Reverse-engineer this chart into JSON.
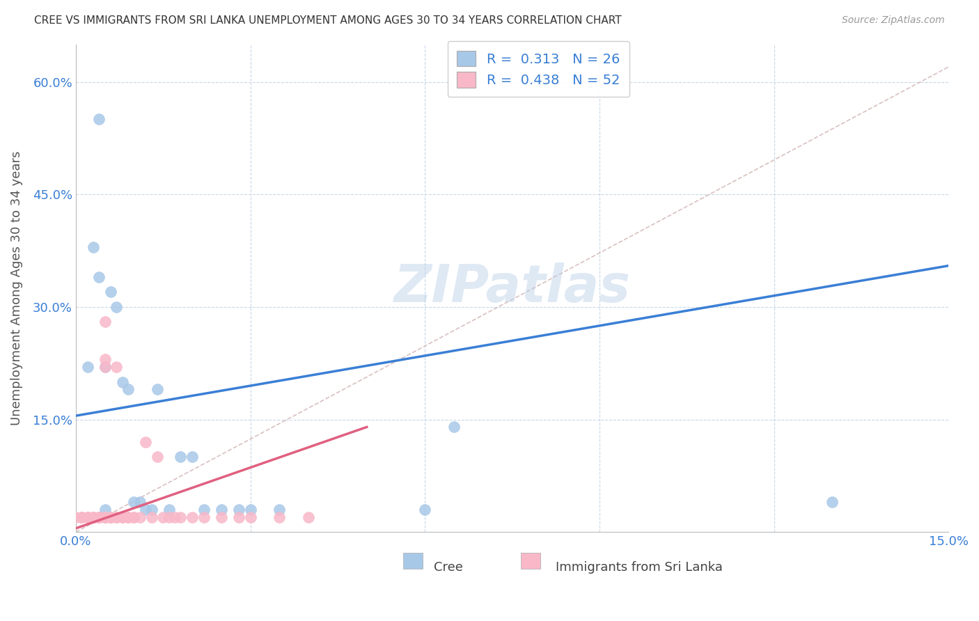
{
  "title": "CREE VS IMMIGRANTS FROM SRI LANKA UNEMPLOYMENT AMONG AGES 30 TO 34 YEARS CORRELATION CHART",
  "source": "Source: ZipAtlas.com",
  "ylabel": "Unemployment Among Ages 30 to 34 years",
  "xlim": [
    0.0,
    0.15
  ],
  "ylim": [
    0.0,
    0.65
  ],
  "xticks": [
    0.0,
    0.03,
    0.06,
    0.09,
    0.12,
    0.15
  ],
  "xtick_labels": [
    "0.0%",
    "",
    "",
    "",
    "",
    "15.0%"
  ],
  "yticks": [
    0.0,
    0.15,
    0.3,
    0.45,
    0.6
  ],
  "ytick_labels": [
    "",
    "15.0%",
    "30.0%",
    "45.0%",
    "60.0%"
  ],
  "cree_color": "#a8c8e8",
  "srilanka_color": "#f8b8c8",
  "cree_line_color": "#3a7fd5",
  "srilanka_line_color": "#e06080",
  "ref_line_color": "#d0b0b0",
  "legend_R_cree": "0.313",
  "legend_N_cree": "26",
  "legend_R_srilanka": "0.438",
  "legend_N_srilanka": "52",
  "watermark": "ZIPatlas",
  "background_color": "#ffffff",
  "grid_color": "#c8d8e8",
  "cree_x": [
    0.002,
    0.003,
    0.004,
    0.005,
    0.005,
    0.006,
    0.007,
    0.008,
    0.009,
    0.01,
    0.011,
    0.012,
    0.013,
    0.014,
    0.016,
    0.018,
    0.02,
    0.022,
    0.025,
    0.028,
    0.03,
    0.035,
    0.06,
    0.065,
    0.13,
    0.004
  ],
  "cree_y": [
    0.22,
    0.38,
    0.34,
    0.22,
    0.03,
    0.32,
    0.3,
    0.2,
    0.19,
    0.04,
    0.04,
    0.03,
    0.03,
    0.19,
    0.03,
    0.1,
    0.1,
    0.03,
    0.03,
    0.03,
    0.03,
    0.03,
    0.03,
    0.14,
    0.04,
    0.55
  ],
  "srilanka_x": [
    0.0,
    0.001,
    0.001,
    0.001,
    0.002,
    0.002,
    0.002,
    0.002,
    0.003,
    0.003,
    0.003,
    0.003,
    0.003,
    0.004,
    0.004,
    0.004,
    0.004,
    0.004,
    0.005,
    0.005,
    0.005,
    0.005,
    0.005,
    0.005,
    0.005,
    0.006,
    0.006,
    0.006,
    0.007,
    0.007,
    0.007,
    0.008,
    0.008,
    0.009,
    0.009,
    0.01,
    0.01,
    0.011,
    0.012,
    0.013,
    0.014,
    0.015,
    0.016,
    0.017,
    0.018,
    0.02,
    0.022,
    0.025,
    0.028,
    0.03,
    0.035,
    0.04
  ],
  "srilanka_y": [
    0.02,
    0.02,
    0.02,
    0.02,
    0.02,
    0.02,
    0.02,
    0.02,
    0.02,
    0.02,
    0.02,
    0.02,
    0.02,
    0.02,
    0.02,
    0.02,
    0.02,
    0.02,
    0.02,
    0.02,
    0.02,
    0.02,
    0.28,
    0.22,
    0.23,
    0.02,
    0.02,
    0.02,
    0.02,
    0.22,
    0.02,
    0.02,
    0.02,
    0.02,
    0.02,
    0.02,
    0.02,
    0.02,
    0.12,
    0.02,
    0.1,
    0.02,
    0.02,
    0.02,
    0.02,
    0.02,
    0.02,
    0.02,
    0.02,
    0.02,
    0.02,
    0.02
  ],
  "cree_trend_x": [
    0.0,
    0.15
  ],
  "cree_trend_y": [
    0.155,
    0.355
  ],
  "srilanka_trend_x": [
    0.0,
    0.05
  ],
  "srilanka_trend_y": [
    0.005,
    0.14
  ]
}
